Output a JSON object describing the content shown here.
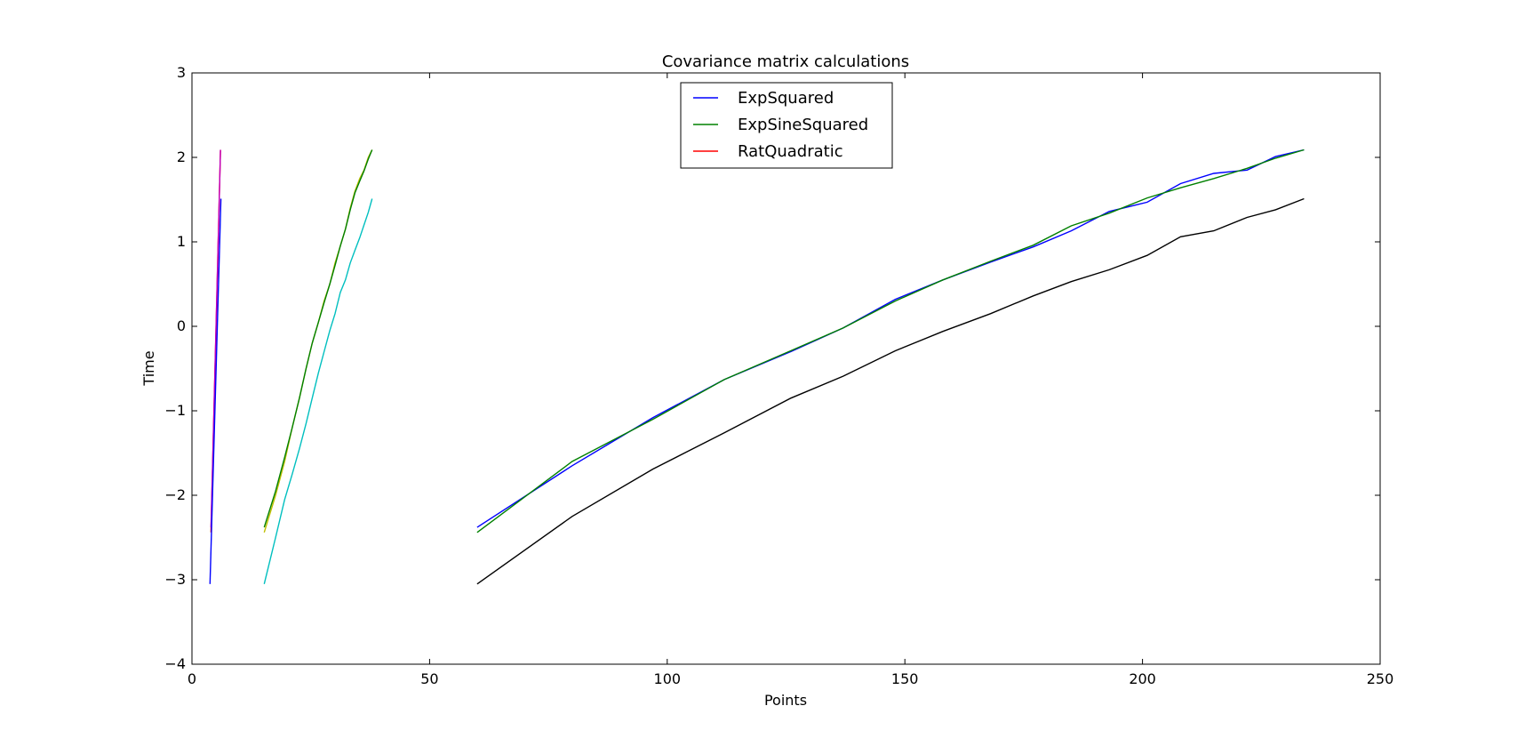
{
  "chart_data": {
    "type": "line",
    "title": "Covariance matrix calculations",
    "xlabel": "Points",
    "ylabel": "Time",
    "xlim": [
      0,
      250
    ],
    "ylim": [
      -4,
      3
    ],
    "xticks": [
      0,
      50,
      100,
      150,
      200,
      250
    ],
    "yticks": [
      -4,
      -3,
      -2,
      -1,
      0,
      1,
      2,
      3
    ],
    "grid": false,
    "legend_position": "top-center",
    "series": [
      {
        "name": "ExpSquared",
        "color": "#0000ff",
        "x": [
          60,
          80,
          97,
          112,
          126,
          137,
          148,
          158,
          168,
          177,
          185,
          193,
          201,
          208,
          215,
          222,
          228,
          234
        ],
        "y": [
          -2.38,
          -1.65,
          -1.08,
          -0.63,
          -0.3,
          -0.02,
          0.32,
          0.55,
          0.76,
          0.94,
          1.13,
          1.36,
          1.47,
          1.69,
          1.81,
          1.85,
          2.01,
          2.09
        ]
      },
      {
        "name": "ExpSineSquared",
        "color": "#008000",
        "x": [
          60,
          80,
          97,
          112,
          126,
          137,
          148,
          158,
          168,
          177,
          185,
          193,
          201,
          208,
          215,
          222,
          228,
          234
        ],
        "y": [
          -2.44,
          -1.6,
          -1.1,
          -0.63,
          -0.29,
          -0.02,
          0.3,
          0.55,
          0.77,
          0.96,
          1.19,
          1.34,
          1.52,
          1.64,
          1.75,
          1.87,
          1.99,
          2.09
        ]
      },
      {
        "name": "RatQuadratic",
        "color": "#ff0000",
        "x": [
          4,
          6
        ],
        "y": [
          -2.44,
          2.09
        ]
      },
      {
        "name": "",
        "color": "#000000",
        "x": [
          60,
          80,
          97,
          112,
          126,
          137,
          148,
          158,
          168,
          177,
          185,
          193,
          201,
          208,
          215,
          222,
          228,
          234
        ],
        "y": [
          -3.05,
          -2.25,
          -1.69,
          -1.26,
          -0.85,
          -0.59,
          -0.29,
          -0.06,
          0.15,
          0.36,
          0.53,
          0.67,
          0.84,
          1.06,
          1.13,
          1.29,
          1.38,
          1.51
        ]
      },
      {
        "name": "",
        "color": "#00bfbf",
        "x": [
          15.2,
          17.6,
          19.5,
          21.1,
          22.6,
          24,
          25.3,
          26.6,
          27.8,
          29,
          30.1,
          31.2,
          32.3,
          33.3,
          34.3,
          35.3,
          36.2,
          37.1,
          37.9
        ],
        "y": [
          -3.05,
          -2.5,
          -2.05,
          -1.75,
          -1.45,
          -1.15,
          -0.85,
          -0.55,
          -0.3,
          -0.05,
          0.15,
          0.4,
          0.55,
          0.75,
          0.9,
          1.05,
          1.2,
          1.35,
          1.51
        ]
      },
      {
        "name": "",
        "color": "#bfbf00",
        "x": [
          15.2,
          17.6,
          19.5,
          21.1,
          22.6,
          24,
          25.3,
          26.6,
          27.8,
          29,
          30.1,
          31.2,
          32.3,
          33.3,
          34.3,
          35.3,
          36.2,
          37.1,
          37.9
        ],
        "y": [
          -2.44,
          -2.0,
          -1.6,
          -1.2,
          -0.85,
          -0.5,
          -0.2,
          0.05,
          0.3,
          0.5,
          0.75,
          0.95,
          1.15,
          1.4,
          1.6,
          1.75,
          1.85,
          2.0,
          2.09
        ]
      },
      {
        "name": "",
        "color": "#bf00bf",
        "x": [
          4,
          6
        ],
        "y": [
          -2.38,
          2.09
        ]
      },
      {
        "name": "",
        "color": "#0000ff",
        "x": [
          3.8,
          6.1
        ],
        "y": [
          -3.05,
          1.51
        ]
      },
      {
        "name": "",
        "color": "#008000",
        "x": [
          15.2,
          17.6,
          19.5,
          21.1,
          22.6,
          24,
          25.3,
          26.6,
          27.8,
          29,
          30.1,
          31.2,
          32.3,
          33.3,
          34.3,
          35.3,
          36.2,
          37.1,
          37.9
        ],
        "y": [
          -2.38,
          -1.95,
          -1.55,
          -1.2,
          -0.85,
          -0.5,
          -0.2,
          0.05,
          0.28,
          0.5,
          0.72,
          0.95,
          1.15,
          1.38,
          1.58,
          1.72,
          1.84,
          1.98,
          2.09
        ]
      }
    ]
  }
}
